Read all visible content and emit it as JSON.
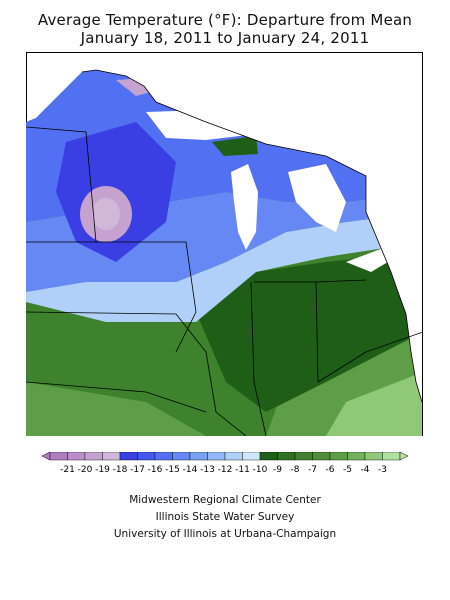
{
  "title": {
    "line1": "Average Temperature (°F): Departure from Mean",
    "line2": "January 18, 2011 to January 24, 2011"
  },
  "legend": {
    "labels": [
      "-21",
      "-20",
      "-19",
      "-18",
      "-17",
      "-16",
      "-15",
      "-14",
      "-13",
      "-12",
      "-11",
      "-10",
      "-9",
      "-8",
      "-7",
      "-6",
      "-5",
      "-4",
      "-3"
    ],
    "colors": [
      "#b07cc0",
      "#bb8dc9",
      "#c5a2cf",
      "#d2b8d8",
      "#3a3fe3",
      "#4457ee",
      "#5270f2",
      "#6588f4",
      "#7aa1f5",
      "#93b8f7",
      "#b0d0f9",
      "#d0e6fb",
      "#1f5e16",
      "#2f7122",
      "#3e822d",
      "#4d8f39",
      "#5d9e47",
      "#73b259",
      "#8fc978",
      "#b2e0a3"
    ]
  },
  "credits": {
    "line1": "Midwestern Regional Climate Center",
    "line2": "Illinois State Water Survey",
    "line3": "University of Illinois at Urbana-Champaign"
  }
}
